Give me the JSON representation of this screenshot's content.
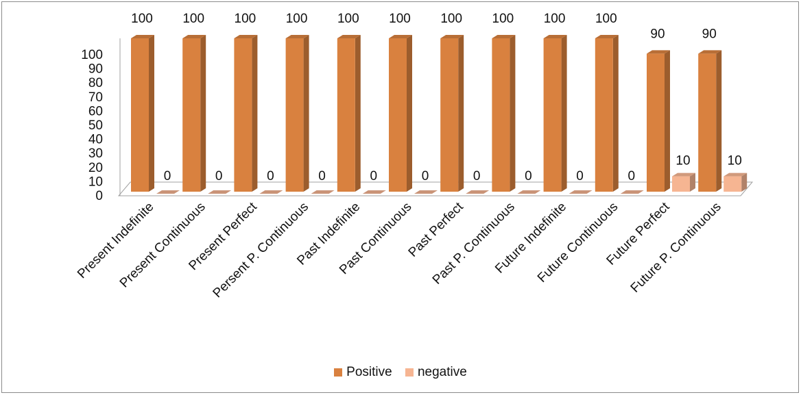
{
  "chart_data": {
    "type": "bar",
    "categories": [
      "Present Indefinite",
      "Present Continuous",
      "Present Perfect",
      "Persent P. Continuous",
      "Past Indefinite",
      "Past Continuous",
      "Past Perfect",
      "Past P. Continuous",
      "Future Indefinite",
      "Future Continuous",
      "Future Perfect",
      "Future P. Continuous"
    ],
    "series": [
      {
        "name": "Positive",
        "values": [
          100,
          100,
          100,
          100,
          100,
          100,
          100,
          100,
          100,
          100,
          90,
          90
        ],
        "color": "#D9813F"
      },
      {
        "name": "negative",
        "values": [
          0,
          0,
          0,
          0,
          0,
          0,
          0,
          0,
          0,
          0,
          10,
          10
        ],
        "color": "#F6B592"
      }
    ],
    "yticks": [
      "0",
      "10",
      "20",
      "30",
      "40",
      "50",
      "60",
      "70",
      "80",
      "90",
      "100"
    ],
    "ylim": [
      0,
      100
    ],
    "grid": false,
    "legend_position": "bottom"
  }
}
